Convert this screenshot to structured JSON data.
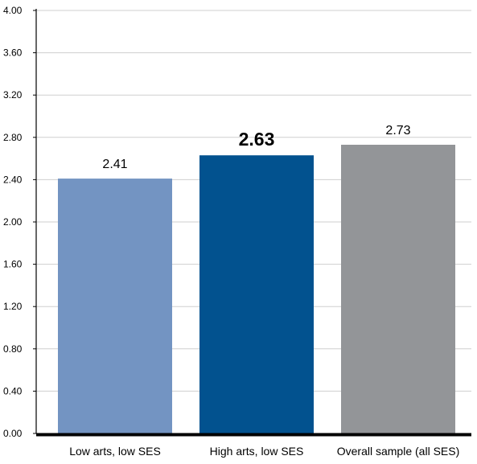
{
  "chart_data": {
    "type": "bar",
    "categories": [
      "Low arts, low SES",
      "High arts, low SES",
      "Overall sample (all SES)"
    ],
    "values": [
      2.41,
      2.63,
      2.73
    ],
    "value_labels": [
      "2.41",
      "2.63",
      "2.73"
    ],
    "emphasized_value_index": 1,
    "colors": [
      "#7394c2",
      "#02528f",
      "#939598"
    ],
    "ylim": [
      0,
      4.0
    ],
    "yticks": [
      "0.00",
      "0.40",
      "0.80",
      "1.20",
      "1.60",
      "2.00",
      "2.40",
      "2.80",
      "3.20",
      "3.60",
      "4.00"
    ],
    "grid": true,
    "title": "",
    "xlabel": "",
    "ylabel": ""
  }
}
